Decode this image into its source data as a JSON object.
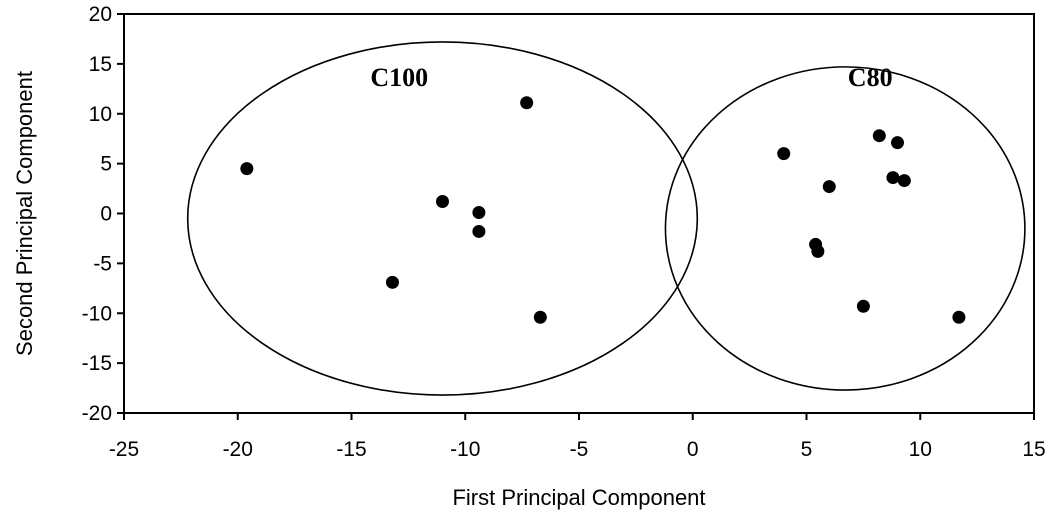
{
  "chart_data": {
    "type": "scatter",
    "title": "",
    "xlabel": "First Principal Component",
    "ylabel": "Second Principal Component",
    "xlim": [
      -25,
      15
    ],
    "ylim": [
      -20,
      20
    ],
    "x_ticks": [
      "-25",
      "-20",
      "-15",
      "-10",
      "-5",
      "0",
      "5",
      "10",
      "15"
    ],
    "y_ticks": [
      "20",
      "15",
      "10",
      "5",
      "0",
      "-5",
      "-10",
      "-15",
      "-20"
    ],
    "grid": false,
    "legend": "none",
    "marker_color": "#000000",
    "points": [
      {
        "x": -19.6,
        "y": 4.5
      },
      {
        "x": -11.0,
        "y": 1.2
      },
      {
        "x": -9.4,
        "y": 0.1
      },
      {
        "x": -9.4,
        "y": -1.8
      },
      {
        "x": -7.3,
        "y": 11.1
      },
      {
        "x": -13.2,
        "y": -6.9
      },
      {
        "x": -6.7,
        "y": -10.4
      },
      {
        "x": 4.0,
        "y": 6.0
      },
      {
        "x": 6.0,
        "y": 2.7
      },
      {
        "x": 8.2,
        "y": 7.8
      },
      {
        "x": 9.0,
        "y": 7.1
      },
      {
        "x": 8.8,
        "y": 3.6
      },
      {
        "x": 9.3,
        "y": 3.3
      },
      {
        "x": 5.4,
        "y": -3.1
      },
      {
        "x": 5.5,
        "y": -3.8
      },
      {
        "x": 7.5,
        "y": -9.3
      },
      {
        "x": 11.7,
        "y": -10.4
      }
    ],
    "groups": [
      {
        "label": "C100",
        "center": [
          -11,
          -0.5
        ],
        "rx": 11.2,
        "ry": 17.7,
        "label_pos": [
          -12.9,
          12.8
        ]
      },
      {
        "label": "C80",
        "center": [
          6.7,
          -1.5
        ],
        "rx": 7.9,
        "ry": 16.2,
        "label_pos": [
          7.8,
          12.8
        ]
      }
    ]
  }
}
